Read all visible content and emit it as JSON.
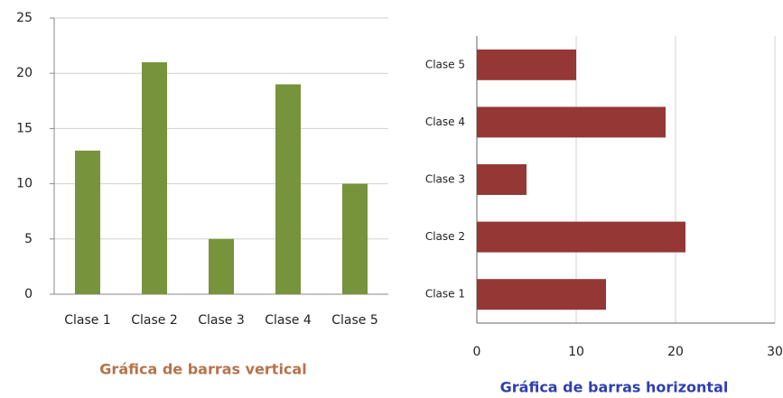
{
  "chart_data": [
    {
      "type": "bar",
      "title": "Gráfica de barras vertical",
      "categories": [
        "Clase 1",
        "Clase 2",
        "Clase 3",
        "Clase 4",
        "Clase 5"
      ],
      "values": [
        13,
        21,
        5,
        19,
        10
      ],
      "color": "#77933c",
      "ylim": [
        0,
        25
      ],
      "yticks": [
        0,
        5,
        10,
        15,
        20,
        25
      ],
      "grid": true
    },
    {
      "type": "barh",
      "title": "Gráfica de barras horizontal",
      "categories": [
        "Clase 1",
        "Clase 2",
        "Clase 3",
        "Clase 4",
        "Clase 5"
      ],
      "values": [
        13,
        21,
        5,
        19,
        10
      ],
      "color": "#953735",
      "xlim": [
        0,
        30
      ],
      "xticks": [
        0,
        10,
        20,
        30
      ],
      "grid": true
    }
  ]
}
